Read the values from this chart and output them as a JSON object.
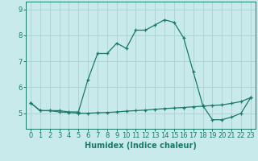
{
  "title": "",
  "xlabel": "Humidex (Indice chaleur)",
  "ylabel": "",
  "background_color": "#c8eaea",
  "grid_color": "#b0d4d4",
  "line_color": "#1a7a6a",
  "x": [
    0,
    1,
    2,
    3,
    4,
    5,
    6,
    7,
    8,
    9,
    10,
    11,
    12,
    13,
    14,
    15,
    16,
    17,
    18,
    19,
    20,
    21,
    22,
    23
  ],
  "y_upper": [
    5.4,
    5.1,
    5.1,
    5.1,
    5.05,
    5.05,
    6.3,
    7.3,
    7.3,
    7.7,
    7.5,
    8.2,
    8.2,
    8.4,
    8.6,
    8.5,
    7.9,
    6.6,
    5.3,
    4.75,
    4.75,
    4.85,
    5.0,
    5.6
  ],
  "y_lower": [
    5.4,
    5.1,
    5.1,
    5.05,
    5.03,
    5.0,
    5.0,
    5.02,
    5.03,
    5.05,
    5.08,
    5.1,
    5.12,
    5.15,
    5.18,
    5.2,
    5.22,
    5.25,
    5.27,
    5.3,
    5.32,
    5.38,
    5.45,
    5.6
  ],
  "ylim": [
    4.4,
    9.3
  ],
  "yticks": [
    5,
    6,
    7,
    8,
    9
  ],
  "xticks": [
    0,
    1,
    2,
    3,
    4,
    5,
    6,
    7,
    8,
    9,
    10,
    11,
    12,
    13,
    14,
    15,
    16,
    17,
    18,
    19,
    20,
    21,
    22,
    23
  ],
  "title_fontsize": 7,
  "label_fontsize": 7,
  "tick_fontsize": 6.0
}
